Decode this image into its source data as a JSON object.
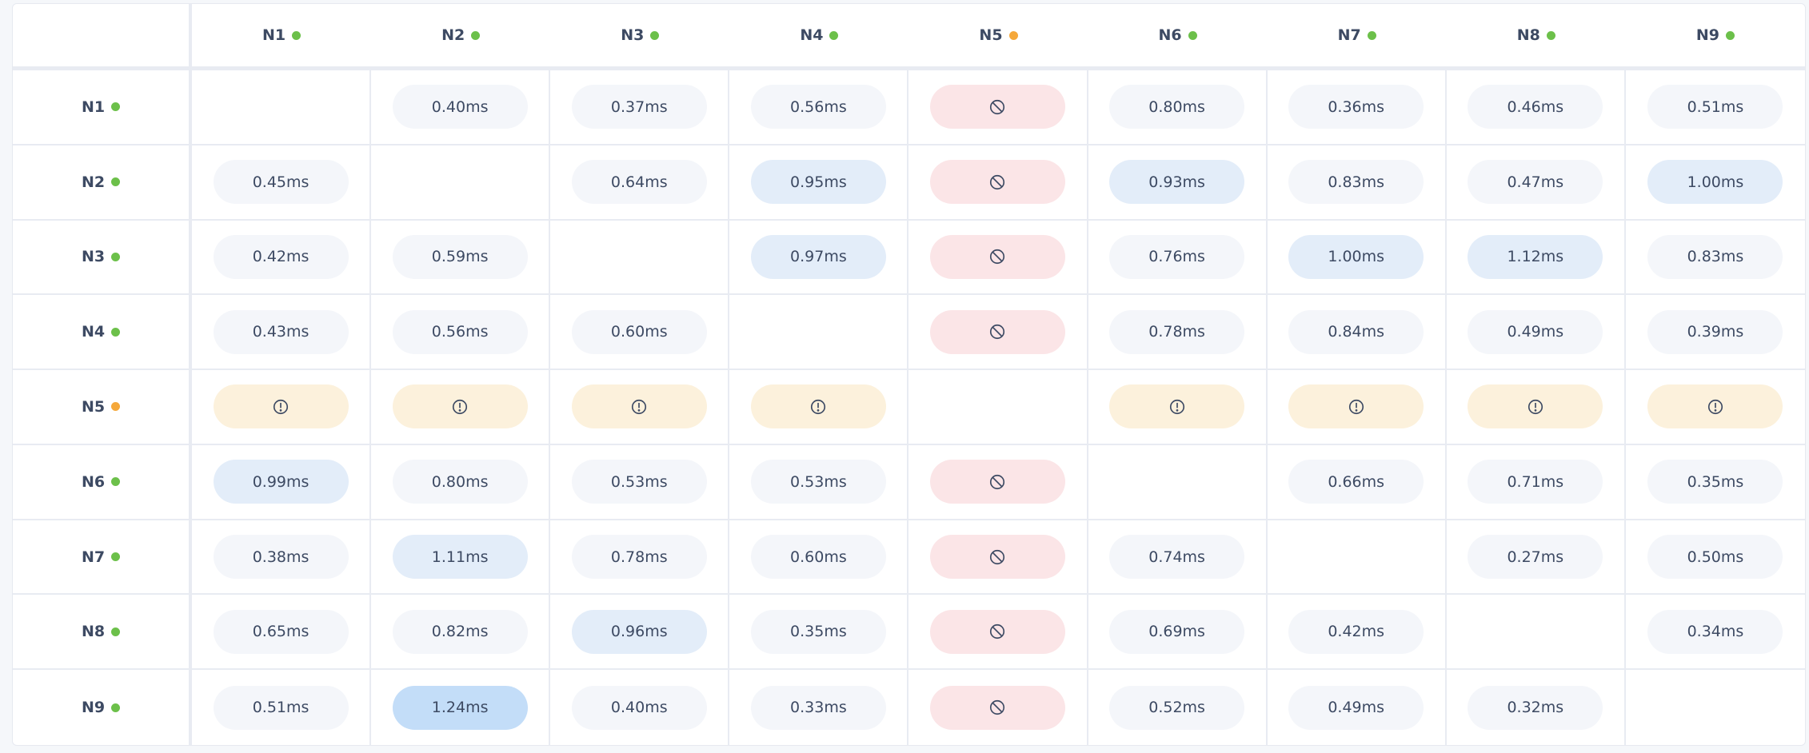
{
  "colors": {
    "online": "#6cc04a",
    "degraded": "#f5a83a",
    "text": "#3d4a63",
    "normal": "#f4f6fa",
    "elevated": "#e3edf9",
    "high": "#c3ddf8",
    "blocked": "#fbe5e7",
    "warning": "#fcf1dc"
  },
  "nodes": [
    {
      "name": "N1",
      "status": "online"
    },
    {
      "name": "N2",
      "status": "online"
    },
    {
      "name": "N3",
      "status": "online"
    },
    {
      "name": "N4",
      "status": "online"
    },
    {
      "name": "N5",
      "status": "degraded"
    },
    {
      "name": "N6",
      "status": "online"
    },
    {
      "name": "N7",
      "status": "online"
    },
    {
      "name": "N8",
      "status": "online"
    },
    {
      "name": "N9",
      "status": "online"
    }
  ],
  "icons": {
    "blocked": "blocked-icon",
    "warning": "warning-icon"
  },
  "matrix": [
    [
      null,
      {
        "v": "0.40ms",
        "s": "normal"
      },
      {
        "v": "0.37ms",
        "s": "normal"
      },
      {
        "v": "0.56ms",
        "s": "normal"
      },
      {
        "s": "blocked"
      },
      {
        "v": "0.80ms",
        "s": "normal"
      },
      {
        "v": "0.36ms",
        "s": "normal"
      },
      {
        "v": "0.46ms",
        "s": "normal"
      },
      {
        "v": "0.51ms",
        "s": "normal"
      }
    ],
    [
      {
        "v": "0.45ms",
        "s": "normal"
      },
      null,
      {
        "v": "0.64ms",
        "s": "normal"
      },
      {
        "v": "0.95ms",
        "s": "elevated"
      },
      {
        "s": "blocked"
      },
      {
        "v": "0.93ms",
        "s": "elevated"
      },
      {
        "v": "0.83ms",
        "s": "normal"
      },
      {
        "v": "0.47ms",
        "s": "normal"
      },
      {
        "v": "1.00ms",
        "s": "elevated"
      }
    ],
    [
      {
        "v": "0.42ms",
        "s": "normal"
      },
      {
        "v": "0.59ms",
        "s": "normal"
      },
      null,
      {
        "v": "0.97ms",
        "s": "elevated"
      },
      {
        "s": "blocked"
      },
      {
        "v": "0.76ms",
        "s": "normal"
      },
      {
        "v": "1.00ms",
        "s": "elevated"
      },
      {
        "v": "1.12ms",
        "s": "elevated"
      },
      {
        "v": "0.83ms",
        "s": "normal"
      }
    ],
    [
      {
        "v": "0.43ms",
        "s": "normal"
      },
      {
        "v": "0.56ms",
        "s": "normal"
      },
      {
        "v": "0.60ms",
        "s": "normal"
      },
      null,
      {
        "s": "blocked"
      },
      {
        "v": "0.78ms",
        "s": "normal"
      },
      {
        "v": "0.84ms",
        "s": "normal"
      },
      {
        "v": "0.49ms",
        "s": "normal"
      },
      {
        "v": "0.39ms",
        "s": "normal"
      }
    ],
    [
      {
        "s": "warning"
      },
      {
        "s": "warning"
      },
      {
        "s": "warning"
      },
      {
        "s": "warning"
      },
      null,
      {
        "s": "warning"
      },
      {
        "s": "warning"
      },
      {
        "s": "warning"
      },
      {
        "s": "warning"
      }
    ],
    [
      {
        "v": "0.99ms",
        "s": "elevated"
      },
      {
        "v": "0.80ms",
        "s": "normal"
      },
      {
        "v": "0.53ms",
        "s": "normal"
      },
      {
        "v": "0.53ms",
        "s": "normal"
      },
      {
        "s": "blocked"
      },
      null,
      {
        "v": "0.66ms",
        "s": "normal"
      },
      {
        "v": "0.71ms",
        "s": "normal"
      },
      {
        "v": "0.35ms",
        "s": "normal"
      }
    ],
    [
      {
        "v": "0.38ms",
        "s": "normal"
      },
      {
        "v": "1.11ms",
        "s": "elevated"
      },
      {
        "v": "0.78ms",
        "s": "normal"
      },
      {
        "v": "0.60ms",
        "s": "normal"
      },
      {
        "s": "blocked"
      },
      {
        "v": "0.74ms",
        "s": "normal"
      },
      null,
      {
        "v": "0.27ms",
        "s": "normal"
      },
      {
        "v": "0.50ms",
        "s": "normal"
      }
    ],
    [
      {
        "v": "0.65ms",
        "s": "normal"
      },
      {
        "v": "0.82ms",
        "s": "normal"
      },
      {
        "v": "0.96ms",
        "s": "elevated"
      },
      {
        "v": "0.35ms",
        "s": "normal"
      },
      {
        "s": "blocked"
      },
      {
        "v": "0.69ms",
        "s": "normal"
      },
      {
        "v": "0.42ms",
        "s": "normal"
      },
      null,
      {
        "v": "0.34ms",
        "s": "normal"
      }
    ],
    [
      {
        "v": "0.51ms",
        "s": "normal"
      },
      {
        "v": "1.24ms",
        "s": "high"
      },
      {
        "v": "0.40ms",
        "s": "normal"
      },
      {
        "v": "0.33ms",
        "s": "normal"
      },
      {
        "s": "blocked"
      },
      {
        "v": "0.52ms",
        "s": "normal"
      },
      {
        "v": "0.49ms",
        "s": "normal"
      },
      {
        "v": "0.32ms",
        "s": "normal"
      },
      null
    ]
  ]
}
